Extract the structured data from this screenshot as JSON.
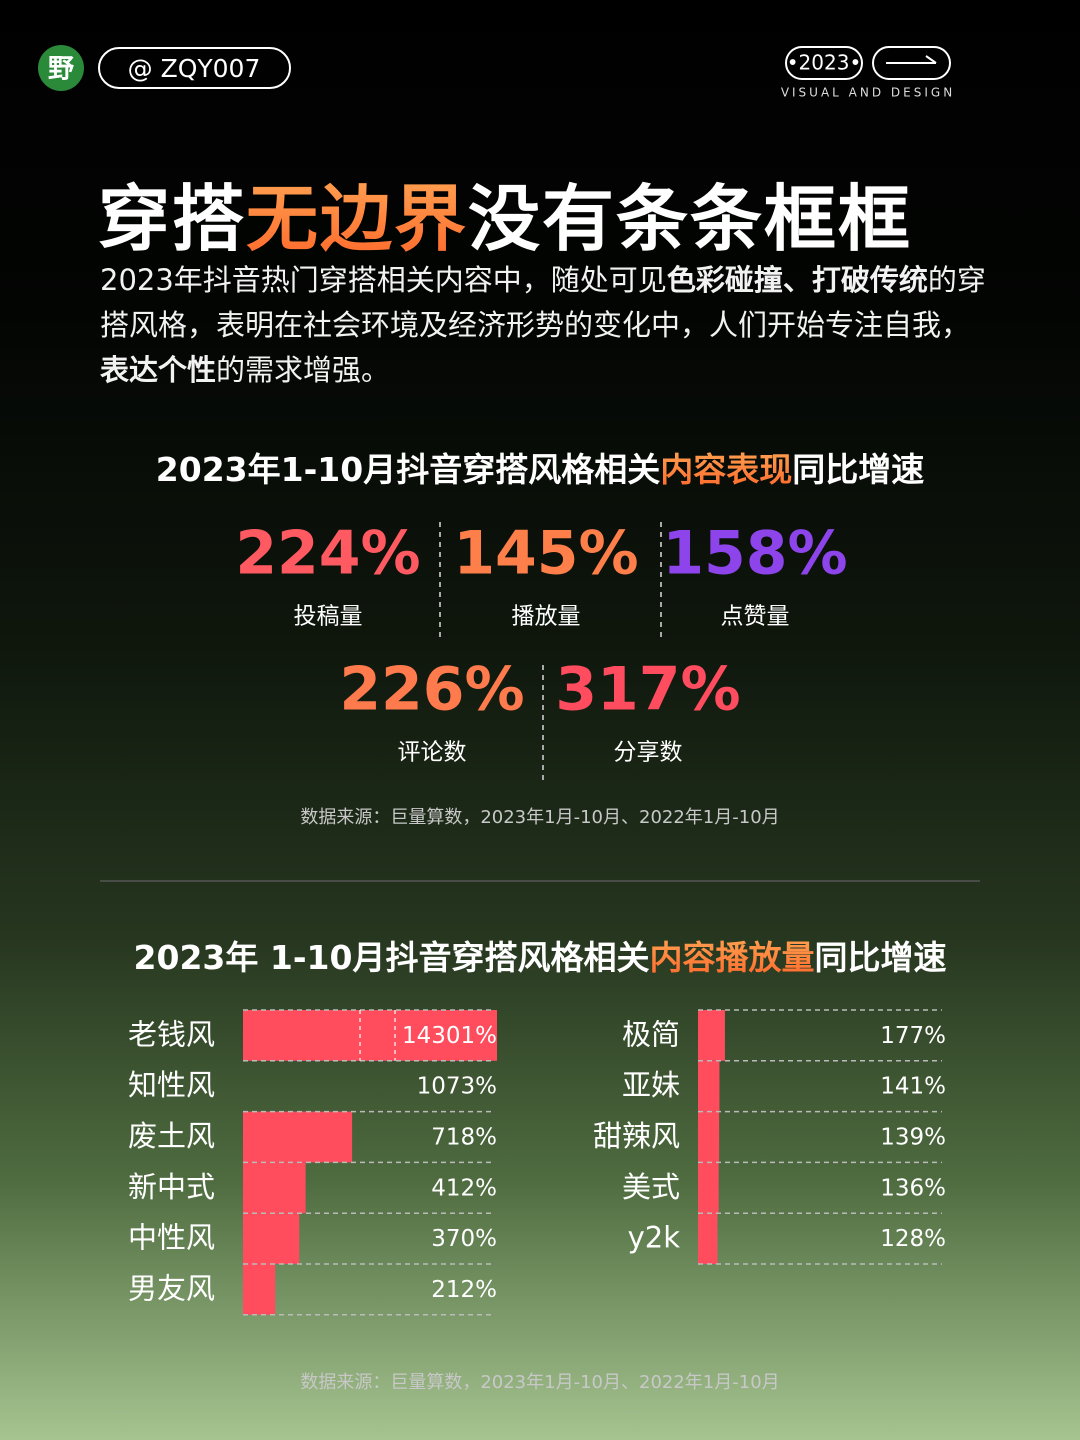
{
  "header": {
    "logo": "野",
    "handle": "@ ZQY007",
    "year": "•2023•",
    "tagline": "VISUAL AND DESIGN"
  },
  "title": [
    {
      "text": "穿搭"
    },
    {
      "text": "无边界",
      "highlight": true
    },
    {
      "text": "没有条条框框"
    }
  ],
  "intro": [
    {
      "text": "2023年抖音热门穿搭相关内容中，随处可见"
    },
    {
      "text": "色彩碰撞、打破传统",
      "bold": true
    },
    {
      "text": "的穿搭风格，表明在社会环境及经济形势的变化中，人们开始专注自我，"
    },
    {
      "text": "表达个性",
      "bold": true
    },
    {
      "text": "的需求增强。"
    }
  ],
  "section1": {
    "title": [
      {
        "text": "2023年1-10月抖音穿搭风格相关"
      },
      {
        "text": "内容表现",
        "highlight": true
      },
      {
        "text": "同比增速"
      }
    ],
    "stats": [
      {
        "value": "224%",
        "label": "投稿量",
        "color": "#ff5a62"
      },
      {
        "value": "145%",
        "label": "播放量",
        "color": "#ff7f4a"
      },
      {
        "value": "158%",
        "label": "点赞量",
        "color": "#8d44ea"
      },
      {
        "value": "226%",
        "label": "评论数",
        "color": "#ff7a4c"
      },
      {
        "value": "317%",
        "label": "分享数",
        "color": "#ff4c5e"
      }
    ],
    "source": "数据来源：巨量算数，2023年1月-10月、2022年1月-10月"
  },
  "section2": {
    "title": [
      {
        "text": "2023年 1-10月抖音穿搭风格相关"
      },
      {
        "text": "内容播放量",
        "highlight": true
      },
      {
        "text": "同比增速"
      }
    ],
    "source": "数据来源：巨量算数，2023年1月-10月、2022年1月-10月"
  },
  "chart_data": [
    {
      "type": "bar",
      "orientation": "horizontal",
      "categories": [
        "老钱风",
        "知性风",
        "废土风",
        "新中式",
        "中性风",
        "男友风"
      ],
      "values": [
        14301,
        1073,
        718,
        412,
        370,
        212
      ],
      "value_labels": [
        "14301%",
        "1073%",
        "718%",
        "412%",
        "370%",
        "212%"
      ],
      "color": "#ff4d5e",
      "xlim": [
        0,
        14301
      ],
      "xbreak": [
        770,
        13630
      ]
    },
    {
      "type": "bar",
      "orientation": "horizontal",
      "categories": [
        "极简",
        "亚妹",
        "甜辣风",
        "美式",
        "y2k"
      ],
      "values": [
        177,
        141,
        139,
        136,
        128
      ],
      "value_labels": [
        "177%",
        "141%",
        "139%",
        "136%",
        "128%"
      ],
      "color": "#ff4d5e",
      "xlim": [
        0,
        1630
      ]
    }
  ]
}
